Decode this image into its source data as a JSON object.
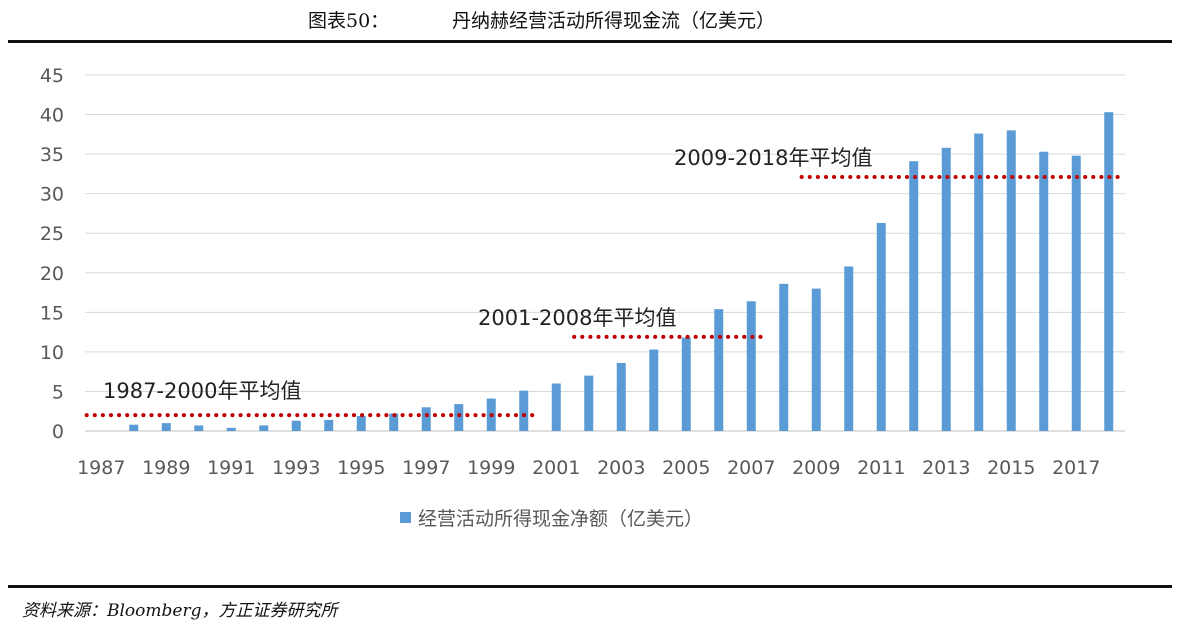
{
  "figure": {
    "number": "图表50：",
    "title": "丹纳赫经营活动所得现金流（亿美元）"
  },
  "source": "资料来源：Bloomberg，方正证券研究所",
  "chart_data": {
    "type": "bar",
    "categories": [
      "1987",
      "1988",
      "1989",
      "1990",
      "1991",
      "1992",
      "1993",
      "1994",
      "1995",
      "1996",
      "1997",
      "1998",
      "1999",
      "2000",
      "2001",
      "2002",
      "2003",
      "2004",
      "2005",
      "2006",
      "2007",
      "2008",
      "2009",
      "2010",
      "2011",
      "2012",
      "2013",
      "2014",
      "2015",
      "2016",
      "2017",
      "2018"
    ],
    "x_tick_labels": [
      "1987",
      "1989",
      "1991",
      "1993",
      "1995",
      "1997",
      "1999",
      "2001",
      "2003",
      "2005",
      "2007",
      "2009",
      "2011",
      "2013",
      "2015",
      "2017"
    ],
    "series": [
      {
        "name": "经营活动所得现金净额（亿美元）",
        "color": "#5B9BD5",
        "values": [
          0,
          0.8,
          1.0,
          0.7,
          0.4,
          0.7,
          1.3,
          1.4,
          1.9,
          2.2,
          3.0,
          3.4,
          4.1,
          5.1,
          6.0,
          7.0,
          8.6,
          10.3,
          11.8,
          15.4,
          16.4,
          18.6,
          18.0,
          20.8,
          26.3,
          34.1,
          35.8,
          37.6,
          38.0,
          35.3,
          34.8,
          40.3
        ]
      }
    ],
    "ylim": [
      0,
      45
    ],
    "yticks": [
      0,
      5,
      10,
      15,
      20,
      25,
      30,
      35,
      40,
      45
    ],
    "grid": "horizontal",
    "legend_position": "bottom",
    "averages": [
      {
        "label": "1987-2000年平均值",
        "from": "1987",
        "to": "2000",
        "value": 2.0,
        "color": "#C00000"
      },
      {
        "label": "2001-2008年平均值",
        "from": "2002",
        "to": "2007",
        "value": 11.9,
        "color": "#C00000"
      },
      {
        "label": "2009-2018年平均值",
        "from": "2009",
        "to": "2018",
        "value": 32.1,
        "color": "#C00000"
      }
    ]
  }
}
